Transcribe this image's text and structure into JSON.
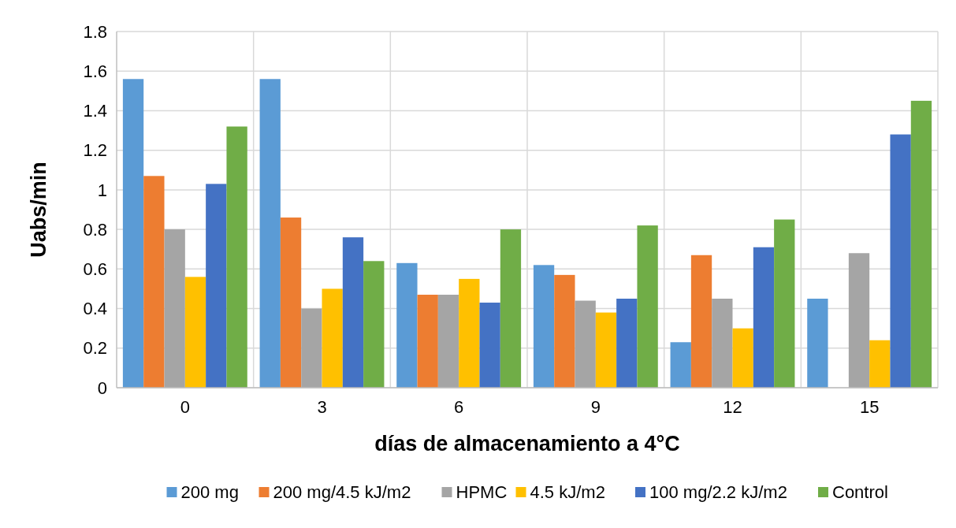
{
  "chart_data": {
    "type": "bar",
    "xlabel": "días de almacenamiento a 4°C",
    "ylabel": "Uabs/min",
    "categories": [
      "0",
      "3",
      "6",
      "9",
      "12",
      "15"
    ],
    "series": [
      {
        "name": "200 mg",
        "color": "#5b9bd5",
        "values": [
          1.56,
          1.56,
          0.63,
          0.62,
          0.23,
          0.45
        ]
      },
      {
        "name": "200 mg/4.5 kJ/m2",
        "color": "#ed7d31",
        "values": [
          1.07,
          0.86,
          0.47,
          0.57,
          0.67,
          null
        ]
      },
      {
        "name": "HPMC",
        "color": "#a5a5a5",
        "values": [
          0.8,
          0.4,
          0.47,
          0.44,
          0.45,
          0.68
        ]
      },
      {
        "name": "4.5 kJ/m2",
        "color": "#ffc000",
        "values": [
          0.56,
          0.5,
          0.55,
          0.38,
          0.3,
          0.24
        ]
      },
      {
        "name": "100 mg/2.2 kJ/m2",
        "color": "#4472c4",
        "values": [
          1.03,
          0.76,
          0.43,
          0.45,
          0.71,
          1.28
        ]
      },
      {
        "name": "Control",
        "color": "#70ad47",
        "values": [
          1.32,
          0.64,
          0.8,
          0.82,
          0.85,
          1.45
        ]
      }
    ],
    "ylim": [
      0,
      1.8
    ],
    "yticks": [
      0,
      0.2,
      0.4,
      0.6,
      0.8,
      1,
      1.2,
      1.4,
      1.6,
      1.8
    ],
    "grid": true,
    "legend": "bottom"
  }
}
